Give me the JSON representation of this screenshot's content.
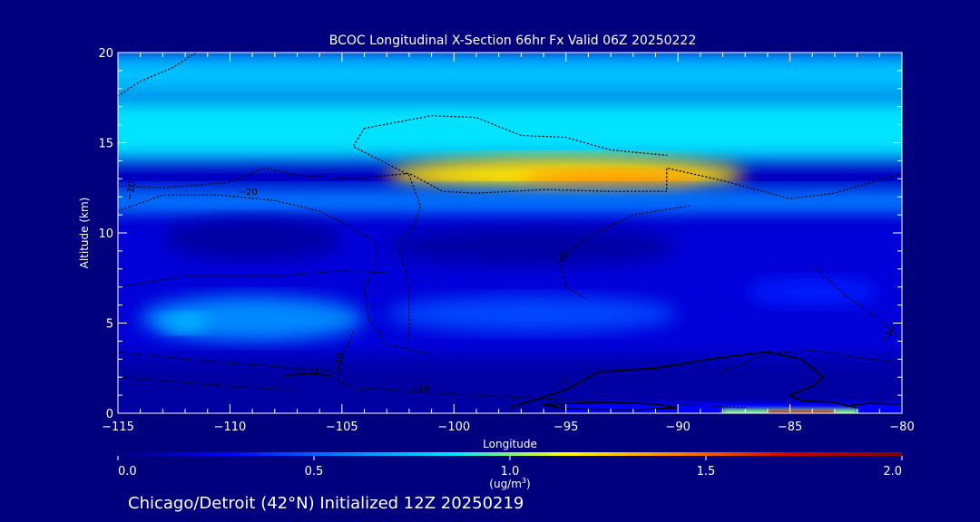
{
  "chart_data": {
    "type": "heatmap",
    "title": "BCOC Longitudinal X-Section 66hr  Fx Valid 06Z 20250222",
    "xlabel": "Longitude",
    "ylabel": "Altitude (km)",
    "xlim": [
      -115,
      -80
    ],
    "ylim": [
      0,
      20
    ],
    "x_ticks": [
      -115,
      -110,
      -105,
      -100,
      -95,
      -90,
      -85,
      -80
    ],
    "x_tick_labels": [
      "−115",
      "−110",
      "−105",
      "−100",
      "−95",
      "−90",
      "−85",
      "−80"
    ],
    "y_ticks": [
      0,
      5,
      10,
      15,
      20
    ],
    "y_tick_labels": [
      "0",
      "5",
      "10",
      "15",
      "20"
    ],
    "colorbar": {
      "min": 0.0,
      "max": 2.0,
      "ticks": [
        0.0,
        0.5,
        1.0,
        1.5,
        2.0
      ],
      "tick_labels": [
        "0.0",
        "0.5",
        "1.0",
        "1.5",
        "2.0"
      ],
      "unit_label": "(ug/m",
      "unit_superscript": "3",
      "unit_suffix": ")",
      "colors": [
        "#00007f",
        "#0000ff",
        "#0080ff",
        "#00e5ff",
        "#ffff00",
        "#ff8000",
        "#cc0000",
        "#7f0000"
      ]
    },
    "fields": [
      {
        "x": [
          -115,
          -80
        ],
        "y": [
          17.5,
          20
        ],
        "value": 0.75,
        "shape": "band"
      },
      {
        "x": [
          -115,
          -80
        ],
        "y": [
          14,
          17.5
        ],
        "value": 0.85,
        "shape": "band"
      },
      {
        "x": [
          -103,
          -87
        ],
        "y": [
          12.2,
          14.2
        ],
        "value": 1.2,
        "shape": "blob"
      },
      {
        "x": [
          -97,
          -89
        ],
        "y": [
          12.3,
          13.4
        ],
        "value": 1.4,
        "shape": "blob"
      },
      {
        "x": [
          -115,
          -80
        ],
        "y": [
          10.8,
          12.5
        ],
        "value": 0.55,
        "shape": "band"
      },
      {
        "x": [
          -115,
          -80
        ],
        "y": [
          3,
          10.8
        ],
        "value": 0.2,
        "shape": "band"
      },
      {
        "x": [
          -113,
          -105
        ],
        "y": [
          8.5,
          10.8
        ],
        "value": 0.08,
        "shape": "blob"
      },
      {
        "x": [
          -103,
          -90
        ],
        "y": [
          8.2,
          10.3
        ],
        "value": 0.08,
        "shape": "blob"
      },
      {
        "x": [
          -114,
          -104
        ],
        "y": [
          4,
          6.5
        ],
        "value": 0.6,
        "shape": "blob"
      },
      {
        "x": [
          -113,
          -111
        ],
        "y": [
          4.5,
          5.5
        ],
        "value": 0.75,
        "shape": "blob"
      },
      {
        "x": [
          -103,
          -90
        ],
        "y": [
          4.5,
          6.5
        ],
        "value": 0.45,
        "shape": "blob"
      },
      {
        "x": [
          -87,
          -81
        ],
        "y": [
          6,
          7.5
        ],
        "value": 0.35,
        "shape": "blob"
      },
      {
        "x": [
          -115,
          -80
        ],
        "y": [
          0,
          3
        ],
        "value": 0.08,
        "shape": "band"
      },
      {
        "x": [
          -95,
          -80
        ],
        "y": [
          0,
          0.6
        ],
        "value": 0.3,
        "shape": "band"
      },
      {
        "x": [
          -88,
          -82
        ],
        "y": [
          0,
          0.25
        ],
        "value": 1.0,
        "shape": "band"
      },
      {
        "x": [
          -86,
          -83
        ],
        "y": [
          0,
          0.12
        ],
        "value": 1.7,
        "shape": "band"
      }
    ],
    "contours": [
      {
        "label": "−10",
        "dash": "dot",
        "label_at": [
          -114.3,
          12.3
        ],
        "label_rot": -80,
        "points": [
          [
            -115,
            17.6
          ],
          [
            -114,
            18.4
          ],
          [
            -112.5,
            19.2
          ],
          [
            -111.5,
            20
          ]
        ]
      },
      {
        "label": "−10",
        "dash": "dot",
        "label_at": [
          -114.3,
          12.3
        ],
        "label_rot": -80,
        "points": [
          [
            -115,
            12.6
          ],
          [
            -113,
            12.5
          ],
          [
            -110,
            12.8
          ],
          [
            -108.5,
            13.6
          ],
          [
            -107,
            13.2
          ],
          [
            -104.5,
            13
          ],
          [
            -102,
            13.3
          ],
          [
            -100.5,
            12.3
          ],
          [
            -99,
            12.2
          ],
          [
            -96,
            12.4
          ],
          [
            -93,
            12.3
          ],
          [
            -90.5,
            12.3
          ],
          [
            -90.5,
            13.6
          ],
          [
            -88,
            12.9
          ],
          [
            -85,
            11.9
          ],
          [
            -83,
            12.2
          ],
          [
            -80,
            13.3
          ]
        ]
      },
      {
        "label": "−20",
        "dash": "dot",
        "label_at": [
          -109.2,
          12.1
        ],
        "label_rot": 0,
        "points": [
          [
            -115,
            11.2
          ],
          [
            -113,
            12.1
          ],
          [
            -110.5,
            12.1
          ],
          [
            -108,
            11.8
          ],
          [
            -106,
            11.2
          ],
          [
            -104.5,
            10.3
          ],
          [
            -103.5,
            9.5
          ],
          [
            -103.5,
            8
          ],
          [
            -104,
            7
          ],
          [
            -103.8,
            5.2
          ],
          [
            -103,
            3.8
          ],
          [
            -101,
            3.3
          ]
        ]
      },
      {
        "label": "",
        "dash": "dot",
        "label_at": [
          0,
          0
        ],
        "label_rot": 0,
        "points": [
          [
            -104,
            15.8
          ],
          [
            -101,
            16.5
          ],
          [
            -99,
            16.4
          ],
          [
            -97,
            15.4
          ],
          [
            -95,
            15.3
          ],
          [
            -93,
            14.6
          ],
          [
            -90.5,
            14.3
          ]
        ]
      },
      {
        "label": "",
        "dash": "dot",
        "label_at": [
          0,
          0
        ],
        "label_rot": 0,
        "points": [
          [
            -104,
            15.8
          ],
          [
            -104.5,
            14.8
          ],
          [
            -102,
            13.2
          ],
          [
            -101.5,
            11.5
          ],
          [
            -101.8,
            10.3
          ],
          [
            -102.5,
            9.5
          ],
          [
            -102,
            7
          ],
          [
            -102,
            4
          ]
        ]
      },
      {
        "label": "−10",
        "dash": "dot",
        "label_at": [
          -95,
          8.4
        ],
        "label_rot": -80,
        "points": [
          [
            -89.5,
            11.5
          ],
          [
            -92,
            11
          ],
          [
            -94,
            9.8
          ],
          [
            -95.3,
            8.5
          ],
          [
            -95,
            7
          ],
          [
            -94,
            6.3
          ]
        ]
      },
      {
        "label": "−10",
        "dash": "dot",
        "label_at": [
          -105,
          2.8
        ],
        "label_rot": -80,
        "points": [
          [
            -104.5,
            4.5
          ],
          [
            -105,
            3
          ],
          [
            -105.2,
            1.8
          ],
          [
            -104,
            1.2
          ]
        ]
      },
      {
        "label": "−10",
        "dash": "dot",
        "label_at": [
          -80.5,
          4.3
        ],
        "label_rot": -60,
        "points": [
          [
            -84,
            8.2
          ],
          [
            -82.5,
            6.5
          ],
          [
            -81,
            5.2
          ],
          [
            -80,
            4
          ]
        ]
      },
      {
        "label": "−10",
        "dash": "dot",
        "label_at": [
          -101.5,
          1.2
        ],
        "label_rot": 0,
        "points": [
          [
            -104,
            1.4
          ],
          [
            -102,
            1.2
          ],
          [
            -99,
            1
          ],
          [
            -96,
            0.8
          ],
          [
            -93,
            0.6
          ],
          [
            -90,
            0.5
          ],
          [
            -87,
            0.3
          ]
        ]
      },
      {
        "label": "",
        "dash": "dot",
        "label_at": [
          0,
          0
        ],
        "label_rot": 0,
        "points": [
          [
            -115,
            7
          ],
          [
            -112,
            7.6
          ],
          [
            -108,
            7.6
          ],
          [
            -105,
            7.9
          ],
          [
            -103,
            7.8
          ]
        ]
      },
      {
        "label": "",
        "dash": "dot",
        "label_at": [
          0,
          0
        ],
        "label_rot": 0,
        "points": [
          [
            -115,
            3.4
          ],
          [
            -112,
            3
          ],
          [
            -108,
            2.6
          ],
          [
            -105,
            2.3
          ]
        ]
      },
      {
        "label": "",
        "dash": "dot",
        "label_at": [
          0,
          0
        ],
        "label_rot": 0,
        "points": [
          [
            -115,
            2
          ],
          [
            -113,
            1.8
          ],
          [
            -110,
            1.5
          ],
          [
            -107,
            1.3
          ]
        ]
      },
      {
        "label": "",
        "dash": "dot",
        "label_at": [
          0,
          0
        ],
        "label_rot": 0,
        "points": [
          [
            -88,
            2.3
          ],
          [
            -86,
            3.3
          ],
          [
            -84,
            3.5
          ],
          [
            -82,
            3.1
          ],
          [
            -80,
            2.8
          ]
        ]
      },
      {
        "label": "0",
        "dash": "solid",
        "label_at": [
          -106.2,
          2.2
        ],
        "label_rot": 0,
        "points": [
          [
            -107.5,
            2.1
          ],
          [
            -106.5,
            2.2
          ],
          [
            -105.5,
            2.1
          ]
        ]
      },
      {
        "label": "0",
        "dash": "solid",
        "label_at": [
          -95,
          1.6
        ],
        "label_rot": 0,
        "points": [
          [
            -97.5,
            0.3
          ],
          [
            -95,
            1.3
          ],
          [
            -93.5,
            2.3
          ],
          [
            -91,
            2.5
          ],
          [
            -88,
            3.1
          ],
          [
            -86,
            3.4
          ],
          [
            -84.5,
            3
          ],
          [
            -83.5,
            2
          ],
          [
            -84,
            1.5
          ],
          [
            -85,
            1
          ],
          [
            -84.5,
            0.7
          ],
          [
            -83,
            0.6
          ],
          [
            -82,
            0.3
          ]
        ]
      },
      {
        "label": "0",
        "dash": "solid",
        "label_at": [
          -81,
          0.5
        ],
        "label_rot": 0,
        "points": [
          [
            -82.5,
            0.4
          ],
          [
            -81.5,
            0.55
          ],
          [
            -80,
            0.5
          ]
        ]
      },
      {
        "label": "",
        "dash": "solid",
        "label_at": [
          0,
          0
        ],
        "label_rot": 0,
        "points": [
          [
            -96,
            0.5
          ],
          [
            -93,
            0.6
          ],
          [
            -91,
            0.5
          ],
          [
            -90,
            0.3
          ],
          [
            -92,
            0.2
          ],
          [
            -95,
            0.25
          ],
          [
            -96,
            0.5
          ]
        ]
      }
    ]
  },
  "footer": {
    "text": "Chicago/Detroit (42°N) Initialized 12Z 20250219"
  }
}
